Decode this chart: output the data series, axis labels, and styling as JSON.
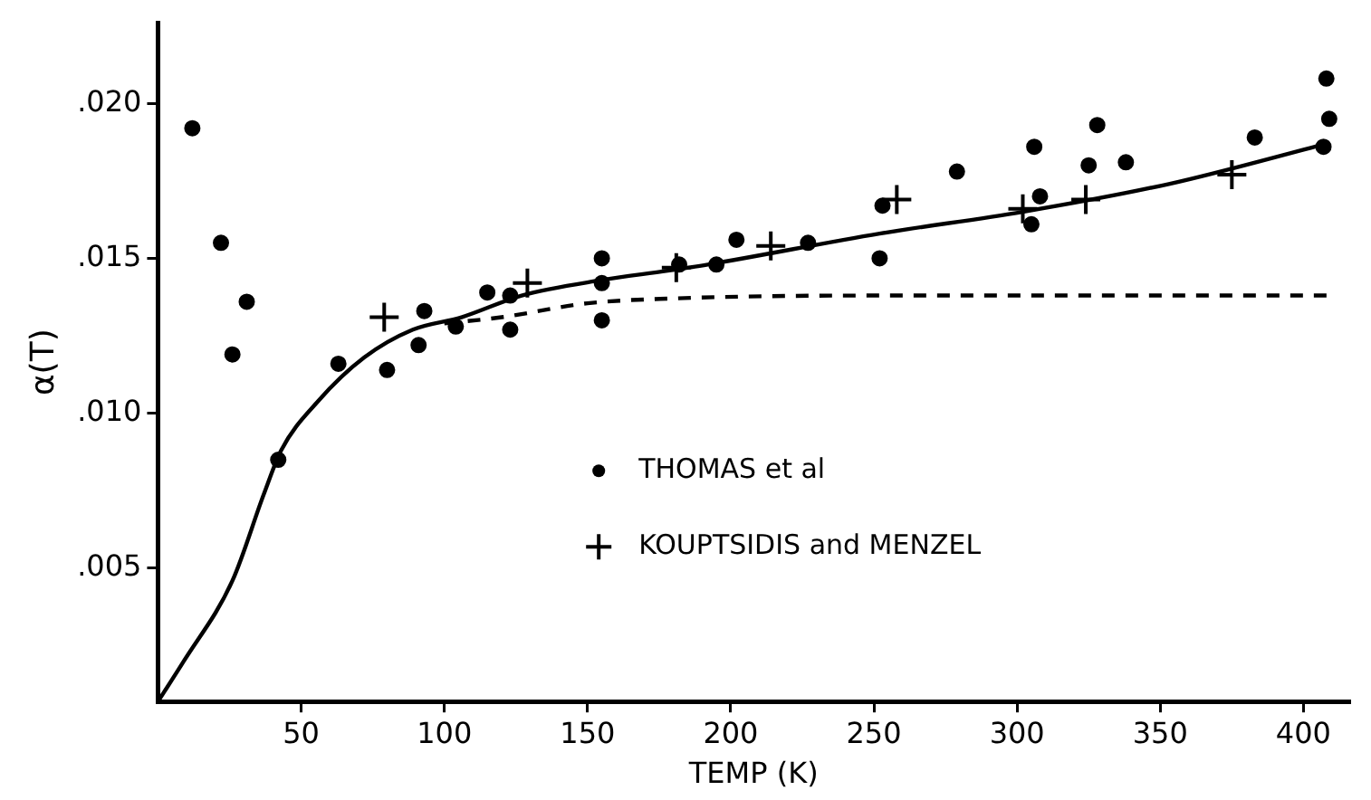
{
  "chart_data": {
    "type": "scatter",
    "xlabel": "TEMP (K)",
    "ylabel": "α(T)",
    "xlim": [
      0,
      416
    ],
    "xticks": [
      50,
      100,
      150,
      200,
      250,
      300,
      350,
      400
    ],
    "ylim": [
      0.0007,
      0.0226
    ],
    "yticks": [
      {
        "value": 0.005,
        "label": ".005"
      },
      {
        "value": 0.01,
        "label": ".010"
      },
      {
        "value": 0.015,
        "label": ".015"
      },
      {
        "value": 0.02,
        "label": ".020"
      }
    ],
    "grid": false,
    "legend": "bottom",
    "series": [
      {
        "name": "THOMAS et al",
        "type": "scatter",
        "marker": "circle",
        "color": "#000000",
        "x": [
          12,
          22,
          26,
          31,
          42,
          63,
          80,
          91,
          93,
          104,
          115,
          123,
          123,
          155,
          155,
          155,
          182,
          195,
          202,
          227,
          252,
          253,
          279,
          306,
          308,
          305,
          325,
          328,
          338,
          383,
          408,
          409,
          407
        ],
        "values": [
          0.0192,
          0.0155,
          0.0119,
          0.0136,
          0.0085,
          0.0116,
          0.0114,
          0.0122,
          0.0133,
          0.0128,
          0.0139,
          0.0127,
          0.0138,
          0.015,
          0.0142,
          0.013,
          0.0148,
          0.0148,
          0.0156,
          0.0155,
          0.015,
          0.0167,
          0.0178,
          0.0186,
          0.017,
          0.0161,
          0.018,
          0.0193,
          0.0181,
          0.0189,
          0.0208,
          0.0195,
          0.0186
        ]
      },
      {
        "name": "KOUPTSIDIS and MENZEL",
        "type": "scatter",
        "marker": "cross",
        "color": "#000000",
        "x": [
          79,
          129,
          181,
          214,
          258,
          302,
          324,
          375
        ],
        "values": [
          0.0131,
          0.0142,
          0.0147,
          0.0154,
          0.0169,
          0.0166,
          0.0169,
          0.0177
        ]
      },
      {
        "type": "line",
        "marker": "none",
        "line_style": "solid",
        "color": "#000000",
        "x": [
          0,
          9,
          26,
          37,
          43,
          56,
          72,
          89,
          106,
          127,
          155,
          178,
          192,
          252,
          302,
          353,
          408
        ],
        "values": [
          0.0007,
          0.002,
          0.0046,
          0.0074,
          0.0088,
          0.0104,
          0.0118,
          0.0127,
          0.0131,
          0.0138,
          0.0143,
          0.0146,
          0.0148,
          0.0158,
          0.0165,
          0.0174,
          0.0187
        ]
      },
      {
        "type": "line",
        "marker": "none",
        "line_style": "dashed",
        "color": "#000000",
        "x": [
          100,
          120,
          150,
          178,
          250,
          410
        ],
        "values": [
          0.0129,
          0.0131,
          0.01355,
          0.0137,
          0.0138,
          0.0138
        ]
      }
    ]
  }
}
